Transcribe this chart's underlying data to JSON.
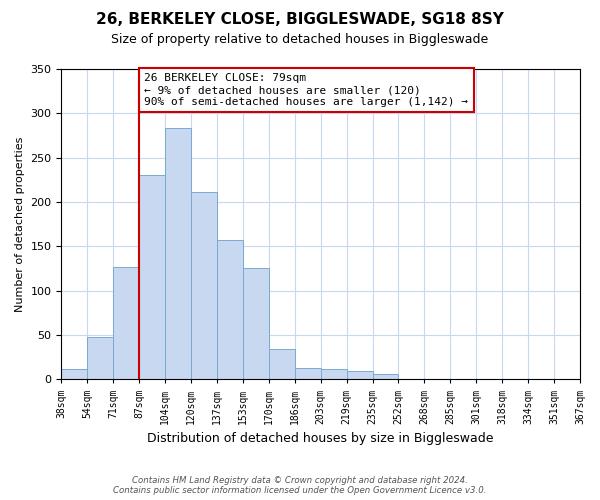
{
  "title": "26, BERKELEY CLOSE, BIGGLESWADE, SG18 8SY",
  "subtitle": "Size of property relative to detached houses in Biggleswade",
  "xlabel": "Distribution of detached houses by size in Biggleswade",
  "ylabel": "Number of detached properties",
  "bar_color": "#c8d8f0",
  "bar_edge_color": "#7aaad0",
  "bin_labels": [
    "38sqm",
    "54sqm",
    "71sqm",
    "87sqm",
    "104sqm",
    "120sqm",
    "137sqm",
    "153sqm",
    "170sqm",
    "186sqm",
    "203sqm",
    "219sqm",
    "235sqm",
    "252sqm",
    "268sqm",
    "285sqm",
    "301sqm",
    "318sqm",
    "334sqm",
    "351sqm",
    "367sqm"
  ],
  "bar_heights": [
    12,
    48,
    127,
    231,
    284,
    211,
    157,
    126,
    34,
    13,
    12,
    10,
    6,
    1,
    1,
    1,
    0,
    0,
    0,
    0
  ],
  "ylim": [
    0,
    350
  ],
  "yticks": [
    0,
    50,
    100,
    150,
    200,
    250,
    300,
    350
  ],
  "vline_color": "#cc0000",
  "annotation_text": "26 BERKELEY CLOSE: 79sqm\n← 9% of detached houses are smaller (120)\n90% of semi-detached houses are larger (1,142) →",
  "annotation_box_color": "#ffffff",
  "annotation_box_edge": "#cc0000",
  "footer_line1": "Contains HM Land Registry data © Crown copyright and database right 2024.",
  "footer_line2": "Contains public sector information licensed under the Open Government Licence v3.0.",
  "background_color": "#ffffff",
  "grid_color": "#c8d8f0"
}
